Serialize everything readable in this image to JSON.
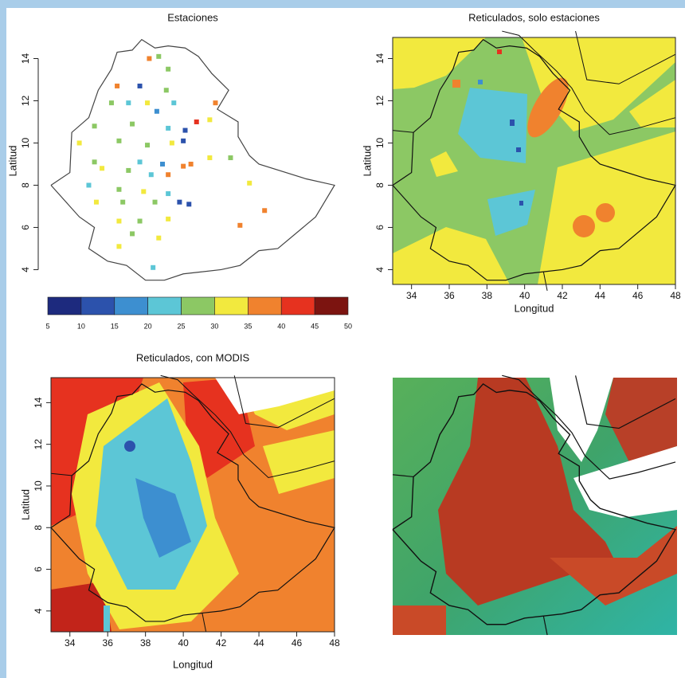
{
  "panels": [
    {
      "title": "Estaciones",
      "ylabel": "Latitud",
      "xlim": [
        33,
        48
      ],
      "ylim": [
        3.3,
        15
      ],
      "yticks": [
        4,
        6,
        8,
        10,
        12,
        14
      ],
      "stations": [
        {
          "lon": 38.2,
          "lat": 14.0,
          "value": 37
        },
        {
          "lon": 38.7,
          "lat": 14.1,
          "value": 27
        },
        {
          "lon": 39.2,
          "lat": 13.5,
          "value": 28
        },
        {
          "lon": 36.5,
          "lat": 12.7,
          "value": 37
        },
        {
          "lon": 37.7,
          "lat": 12.7,
          "value": 12
        },
        {
          "lon": 39.1,
          "lat": 12.5,
          "value": 27
        },
        {
          "lon": 41.7,
          "lat": 11.9,
          "value": 38
        },
        {
          "lon": 36.2,
          "lat": 11.9,
          "value": 27
        },
        {
          "lon": 37.1,
          "lat": 11.9,
          "value": 22
        },
        {
          "lon": 38.1,
          "lat": 11.9,
          "value": 32
        },
        {
          "lon": 39.5,
          "lat": 11.9,
          "value": 22
        },
        {
          "lon": 38.6,
          "lat": 11.5,
          "value": 17
        },
        {
          "lon": 40.7,
          "lat": 11.0,
          "value": 42
        },
        {
          "lon": 41.4,
          "lat": 11.1,
          "value": 32
        },
        {
          "lon": 35.3,
          "lat": 10.8,
          "value": 27
        },
        {
          "lon": 37.3,
          "lat": 10.9,
          "value": 28
        },
        {
          "lon": 39.2,
          "lat": 10.7,
          "value": 22
        },
        {
          "lon": 40.1,
          "lat": 10.6,
          "value": 12
        },
        {
          "lon": 34.5,
          "lat": 10.0,
          "value": 32
        },
        {
          "lon": 36.6,
          "lat": 10.1,
          "value": 27
        },
        {
          "lon": 38.1,
          "lat": 9.9,
          "value": 27
        },
        {
          "lon": 39.4,
          "lat": 10.0,
          "value": 32
        },
        {
          "lon": 40.0,
          "lat": 10.1,
          "value": 13
        },
        {
          "lon": 35.3,
          "lat": 9.1,
          "value": 28
        },
        {
          "lon": 37.7,
          "lat": 9.1,
          "value": 22
        },
        {
          "lon": 38.9,
          "lat": 9.0,
          "value": 17
        },
        {
          "lon": 40.4,
          "lat": 9.0,
          "value": 38
        },
        {
          "lon": 41.4,
          "lat": 9.3,
          "value": 32
        },
        {
          "lon": 42.5,
          "lat": 9.3,
          "value": 28
        },
        {
          "lon": 35.7,
          "lat": 8.8,
          "value": 32
        },
        {
          "lon": 37.1,
          "lat": 8.7,
          "value": 27
        },
        {
          "lon": 38.3,
          "lat": 8.5,
          "value": 22
        },
        {
          "lon": 39.2,
          "lat": 8.5,
          "value": 38
        },
        {
          "lon": 40.0,
          "lat": 8.9,
          "value": 37
        },
        {
          "lon": 35.0,
          "lat": 8.0,
          "value": 22
        },
        {
          "lon": 36.6,
          "lat": 7.8,
          "value": 27
        },
        {
          "lon": 37.9,
          "lat": 7.7,
          "value": 32
        },
        {
          "lon": 39.2,
          "lat": 7.6,
          "value": 22
        },
        {
          "lon": 35.4,
          "lat": 7.2,
          "value": 32
        },
        {
          "lon": 36.8,
          "lat": 7.2,
          "value": 27
        },
        {
          "lon": 38.5,
          "lat": 7.2,
          "value": 28
        },
        {
          "lon": 39.8,
          "lat": 7.2,
          "value": 12
        },
        {
          "lon": 40.3,
          "lat": 7.1,
          "value": 12
        },
        {
          "lon": 43.5,
          "lat": 8.1,
          "value": 32
        },
        {
          "lon": 44.3,
          "lat": 6.8,
          "value": 38
        },
        {
          "lon": 36.6,
          "lat": 6.3,
          "value": 32
        },
        {
          "lon": 37.7,
          "lat": 6.3,
          "value": 27
        },
        {
          "lon": 39.2,
          "lat": 6.4,
          "value": 32
        },
        {
          "lon": 43.0,
          "lat": 6.1,
          "value": 38
        },
        {
          "lon": 37.3,
          "lat": 5.7,
          "value": 27
        },
        {
          "lon": 38.7,
          "lat": 5.5,
          "value": 32
        },
        {
          "lon": 36.6,
          "lat": 5.1,
          "value": 32
        },
        {
          "lon": 38.4,
          "lat": 4.1,
          "value": 22
        }
      ],
      "colorbar": {
        "ticks": [
          5,
          10,
          15,
          20,
          25,
          30,
          35,
          40,
          45,
          50
        ],
        "colors": [
          "#1d2a7e",
          "#2c52ac",
          "#3d8fd0",
          "#5cc6d6",
          "#8cc864",
          "#f2e93e",
          "#f0822e",
          "#e6321f",
          "#7c1410"
        ]
      }
    },
    {
      "title": "Reticulados, solo estaciones",
      "xlabel": "Longitud",
      "ylabel": "Latitud",
      "xlim": [
        33,
        48
      ],
      "ylim": [
        3.3,
        15
      ],
      "xticks": [
        34,
        36,
        38,
        40,
        42,
        44,
        46,
        48
      ],
      "yticks": [
        4,
        6,
        8,
        10,
        12,
        14
      ]
    },
    {
      "title": "Reticulados, con MODIS",
      "xlabel": "Longitud",
      "ylabel": "Latitud",
      "xlim": [
        33,
        48
      ],
      "ylim": [
        3,
        15.2
      ],
      "xticks": [
        34,
        36,
        38,
        40,
        42,
        44,
        46,
        48
      ],
      "yticks": [
        4,
        6,
        8,
        10,
        12,
        14
      ]
    }
  ]
}
